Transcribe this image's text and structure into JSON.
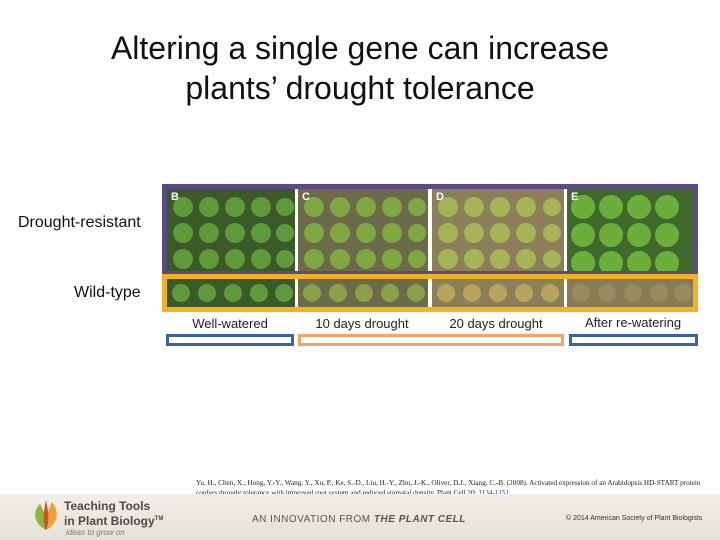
{
  "slide": {
    "title_line1": "Altering a single gene can increase",
    "title_line2": "plants’ drought tolerance"
  },
  "rows": {
    "drought_resistant_label": "Drought-resistant",
    "wild_type_label": "Wild-type"
  },
  "panels": [
    {
      "letter": "B",
      "condition": "Well-watered"
    },
    {
      "letter": "C",
      "condition": "10 days drought"
    },
    {
      "letter": "D",
      "condition": "20 days drought"
    },
    {
      "letter": "E",
      "condition": "After re-watering"
    }
  ],
  "colors": {
    "drought_resistant_border": "#5b4a86",
    "wild_type_border": "#f2b323",
    "well_watered_bar": "#3d62a8",
    "drought_bar": "#f4a46a",
    "rewater_bar": "#3d62a8"
  },
  "citation": {
    "text": "Yu, H., Chen, X., Hong, Y.-Y., Wang, Y., Xu, P., Ke, S.-D., Liu, H.-Y., Zhu, J.-K., Oliver, D.J., Xiang, C.-B. (2008). Activated expression of an Arabidopsis HD-START protein confers drought tolerance with improved root system and reduced stomatal density. Plant Cell 20: ",
    "link": "1134-1151",
    "suffix": "."
  },
  "footer": {
    "logo_line1": "Teaching Tools",
    "logo_line2": "in Plant Biology",
    "logo_tm": "TM",
    "tagline": "ideas to grow on",
    "innovation_prefix": "AN INNOVATION FROM",
    "innovation_brand": "THE PLANT CELL",
    "copyright": "© 2014 American Society of Plant Biologists"
  }
}
